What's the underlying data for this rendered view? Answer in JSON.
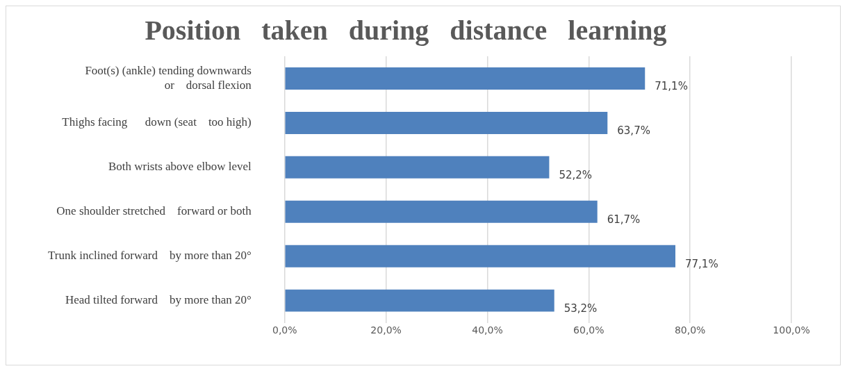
{
  "chart_data": {
    "type": "bar",
    "orientation": "horizontal",
    "title": "Position   taken   during   distance   learning",
    "categories": [
      "Foot(s) (ankle) tending downwards or    dorsal flexion",
      "Thighs facing      down (seat    too high)",
      "Both wrists above elbow level",
      "One shoulder stretched    forward or both",
      "Trunk inclined forward    by more than 20°",
      "Head tilted forward    by more than 20°"
    ],
    "values": [
      71.1,
      63.7,
      52.2,
      61.7,
      77.1,
      53.2
    ],
    "value_labels": [
      "71,1%",
      "63,7%",
      "52,2%",
      "61,7%",
      "77,1%",
      "53,2%"
    ],
    "color": "#4f81bd",
    "xlim": [
      0,
      100
    ],
    "xticks": [
      {
        "value": 0,
        "label": "0,0%"
      },
      {
        "value": 20,
        "label": "20,0%"
      },
      {
        "value": 40,
        "label": "40,0%"
      },
      {
        "value": 60,
        "label": "60,0%"
      },
      {
        "value": 80,
        "label": "80,0%"
      },
      {
        "value": 100,
        "label": "100,0%"
      }
    ],
    "grid": "x",
    "legend": false
  }
}
